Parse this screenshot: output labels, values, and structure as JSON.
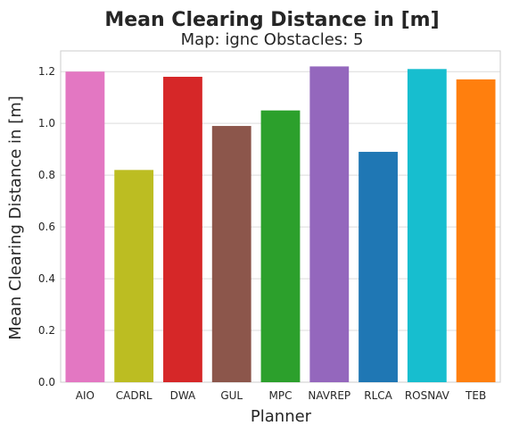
{
  "chart_data": {
    "type": "bar",
    "title": "Mean Clearing Distance in [m]",
    "subtitle": "Map: ignc Obstacles: 5",
    "xlabel": "Planner",
    "ylabel": "Mean Clearing Distance in [m]",
    "categories": [
      "AIO",
      "CADRL",
      "DWA",
      "GUL",
      "MPC",
      "NAVREP",
      "RLCA",
      "ROSNAV",
      "TEB"
    ],
    "values": [
      1.2,
      0.82,
      1.18,
      0.99,
      1.05,
      1.22,
      0.89,
      1.21,
      1.17
    ],
    "colors": [
      "#e377c2",
      "#bcbd22",
      "#d62728",
      "#8c564b",
      "#2ca02c",
      "#9467bd",
      "#1f77b4",
      "#17becf",
      "#ff7f0e"
    ],
    "ylim": [
      0,
      1.28
    ],
    "yticks": [
      "0.0",
      "0.2",
      "0.4",
      "0.6",
      "0.8",
      "1.0",
      "1.2"
    ],
    "grid": true,
    "legend": "none"
  }
}
